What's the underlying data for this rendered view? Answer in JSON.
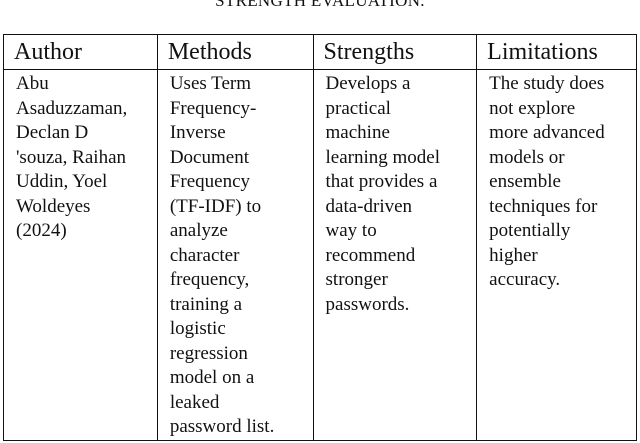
{
  "caption": "STRENGTH EVALUATION.",
  "table": {
    "headers": [
      "Author",
      "Methods",
      "Strengths",
      "Limitations"
    ],
    "rows": [
      [
        "Abu\nAsaduzzaman,\nDeclan D\n'souza, Raihan\nUddin, Yoel\nWoldeyes\n(2024)",
        "Uses Term\nFrequency-\nInverse\nDocument\nFrequency\n(TF-IDF) to\nanalyze\ncharacter\nfrequency,\ntraining a\nlogistic\nregression\nmodel on a\nleaked\npassword list.",
        "Develops a\npractical\nmachine\nlearning model\nthat provides a\ndata-driven\nway to\nrecommend\nstronger\npasswords.",
        "The study does\nnot explore\nmore advanced\nmodels or\nensemble\ntechniques for\npotentially\nhigher\naccuracy."
      ]
    ]
  }
}
